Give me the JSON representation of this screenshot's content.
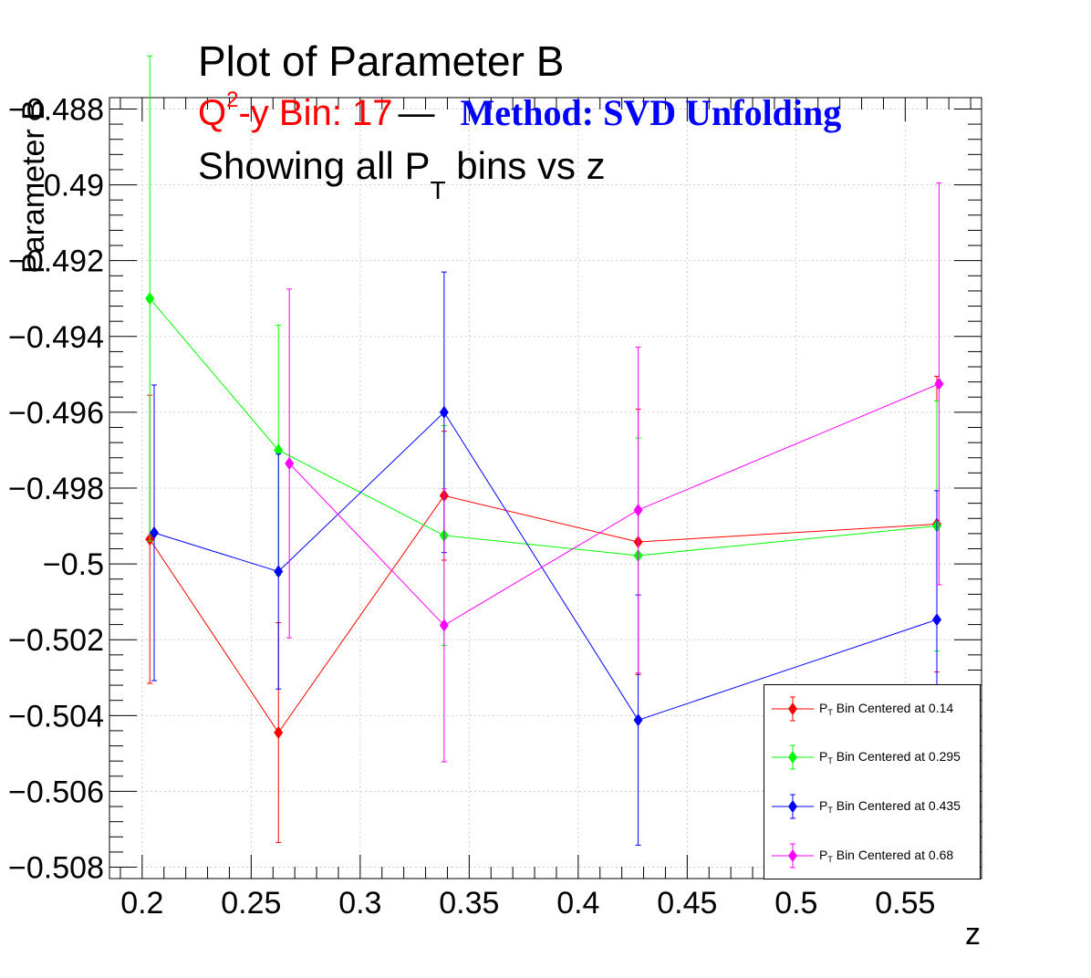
{
  "title": {
    "main": "Plot of Parameter B",
    "line2_q": "Q",
    "line2_sup": "2",
    "line2_rest": "-y Bin: 17",
    "line2_dash": "—",
    "line2_method": "Method: SVD Unfolding",
    "line3_pre": "Showing all P",
    "line3_sub": "T",
    "line3_post": " bins vs z"
  },
  "axes": {
    "ylabel": "Parameter B",
    "xlabel": "z"
  },
  "chart_data": {
    "type": "scatter",
    "title": "Plot of Parameter B",
    "xlabel": "z",
    "ylabel": "Parameter B",
    "xlim": [
      0.185,
      0.585
    ],
    "ylim": [
      -0.5083,
      -0.4877
    ],
    "x_ticks": [
      0.2,
      0.25,
      0.3,
      0.35,
      0.4,
      0.45,
      0.5,
      0.55
    ],
    "x_tick_labels": [
      "0.2",
      "0.25",
      "0.3",
      "0.35",
      "0.4",
      "0.45",
      "0.5",
      "0.55"
    ],
    "y_ticks": [
      -0.488,
      -0.49,
      -0.492,
      -0.494,
      -0.496,
      -0.498,
      -0.5,
      -0.502,
      -0.504,
      -0.506,
      -0.508
    ],
    "y_tick_labels": [
      "−0.488",
      "−0.49",
      "−0.492",
      "−0.494",
      "−0.496",
      "−0.498",
      "−0.5",
      "−0.502",
      "−0.504",
      "−0.506",
      "−0.508"
    ],
    "grid": true,
    "legend_position": "bottom-right",
    "series": [
      {
        "name_prefix": "P",
        "name_sub": "T",
        "name_suffix": " Bin Centered at 0.14",
        "color": "#ff0000",
        "x": [
          0.2035,
          0.2625,
          0.3385,
          0.4275,
          0.5645
        ],
        "y": [
          -0.49935,
          -0.50445,
          -0.4982,
          -0.49942,
          -0.49895
        ],
        "err": [
          0.0038,
          0.0029,
          0.0017,
          0.0035,
          0.0039
        ]
      },
      {
        "name_prefix": "P",
        "name_sub": "T",
        "name_suffix": " Bin Centered at 0.295",
        "color": "#00ff00",
        "x": [
          0.2035,
          0.2625,
          0.3385,
          0.4275,
          0.5645
        ],
        "y": [
          -0.493,
          -0.497,
          -0.49925,
          -0.49978,
          -0.499
        ],
        "err": [
          0.0064,
          0.0033,
          0.0029,
          0.0031,
          0.0033
        ]
      },
      {
        "name_prefix": "P",
        "name_sub": "T",
        "name_suffix": " Bin Centered at 0.435",
        "color": "#0000ff",
        "x": [
          0.2055,
          0.2625,
          0.3385,
          0.4275,
          0.5645
        ],
        "y": [
          -0.49918,
          -0.5002,
          -0.496,
          -0.50412,
          -0.50147
        ],
        "err": [
          0.0039,
          0.0031,
          0.0037,
          0.0033,
          0.0034
        ]
      },
      {
        "name_prefix": "P",
        "name_sub": "T",
        "name_suffix": " Bin Centered at 0.68",
        "color": "#ff00ff",
        "x": [
          0.2675,
          0.3385,
          0.4275,
          0.5655
        ],
        "y": [
          -0.49735,
          -0.50162,
          -0.49858,
          -0.49525
        ],
        "err": [
          0.0046,
          0.0036,
          0.0043,
          0.0053
        ]
      }
    ]
  }
}
